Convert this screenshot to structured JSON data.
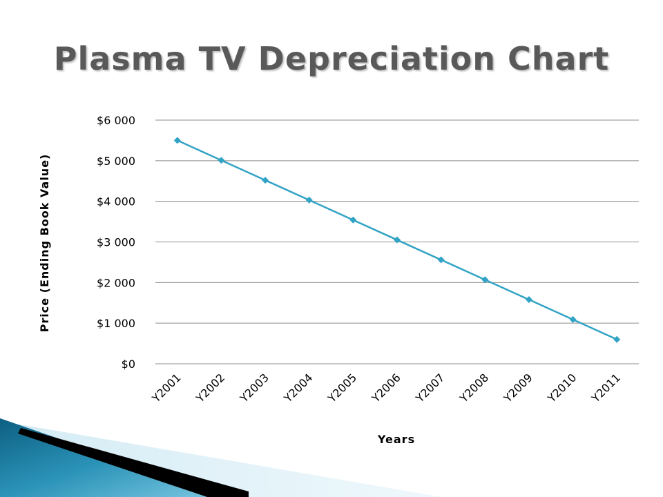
{
  "slide": {
    "title": "Plasma TV Depreciation Chart"
  },
  "chart_data": {
    "type": "line",
    "title": "",
    "xlabel": "Years",
    "ylabel": "Price (Ending Book Value)",
    "categories": [
      "Y2001",
      "Y2002",
      "Y2003",
      "Y2004",
      "Y2005",
      "Y2006",
      "Y2007",
      "Y2008",
      "Y2009",
      "Y2010",
      "Y2011"
    ],
    "series": [
      {
        "values": [
          5500,
          5010,
          4520,
          4030,
          3540,
          3050,
          2560,
          2070,
          1580,
          1090,
          600
        ]
      }
    ],
    "ylim": [
      0,
      6000
    ],
    "yticks": [
      0,
      1000,
      2000,
      3000,
      4000,
      5000,
      6000
    ],
    "ytick_labels": [
      "$0",
      "$1 000",
      "$2 000",
      "$3 000",
      "$4 000",
      "$5 000",
      "$6 000"
    ],
    "grid": true,
    "legend": "none",
    "line_color": "#31a3c4"
  },
  "theme": {
    "title_color": "#595959",
    "accent_dark": "#0a4a66",
    "accent_light": "#9fd7ea"
  }
}
